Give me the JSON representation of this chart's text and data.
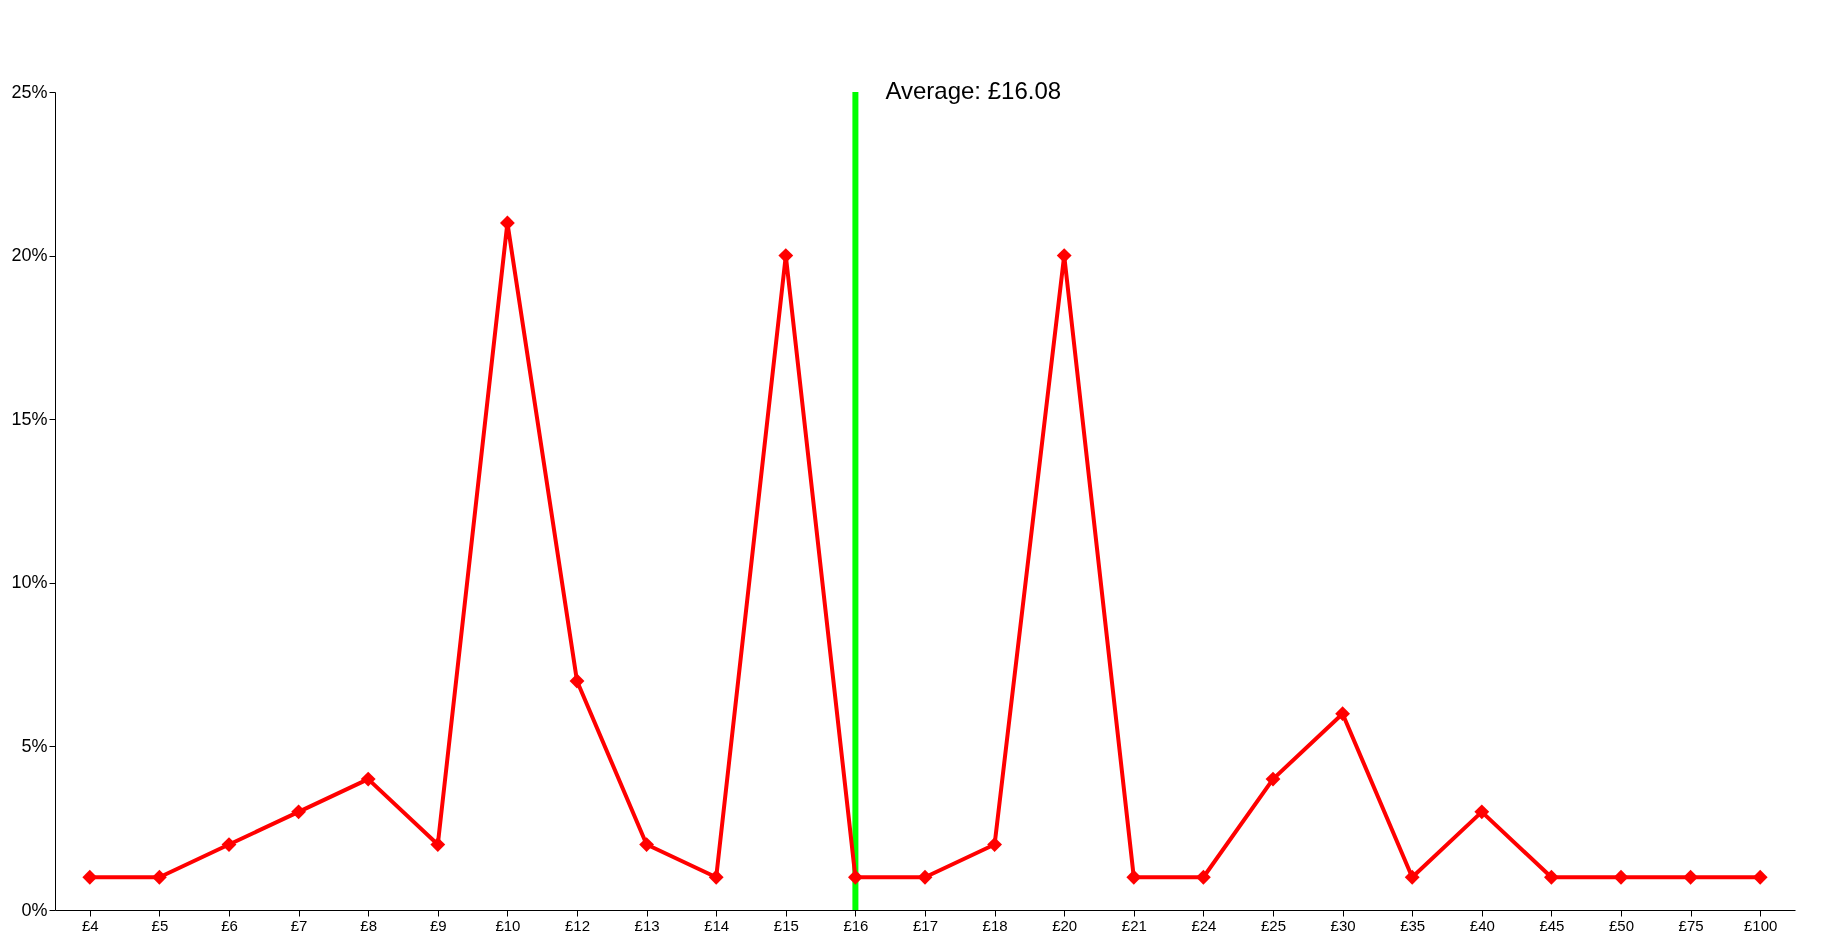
{
  "chart_data": {
    "type": "line",
    "categories": [
      "£4",
      "£5",
      "£6",
      "£7",
      "£8",
      "£9",
      "£10",
      "£12",
      "£13",
      "£14",
      "£15",
      "£16",
      "£17",
      "£18",
      "£20",
      "£21",
      "£24",
      "£25",
      "£30",
      "£35",
      "£40",
      "£45",
      "£50",
      "£75",
      "£100"
    ],
    "series": [
      {
        "color": "#ff0000",
        "values": [
          1,
          1,
          2,
          3,
          4,
          2,
          21,
          7,
          2,
          1,
          20,
          1,
          1,
          2,
          20,
          1,
          1,
          4,
          6,
          1,
          3,
          1,
          1,
          1,
          1
        ]
      }
    ],
    "ylim": [
      0,
      25
    ],
    "yticks": [
      {
        "value": 0,
        "label": "0%"
      },
      {
        "value": 5,
        "label": "5%"
      },
      {
        "value": 10,
        "label": "10%"
      },
      {
        "value": 15,
        "label": "15%"
      },
      {
        "value": 20,
        "label": "20%"
      },
      {
        "value": 25,
        "label": "25%"
      }
    ],
    "ref_lines": [
      {
        "axis": "x",
        "value": "£16",
        "label": "Average:  £16.08",
        "color": "#00ff00"
      }
    ],
    "marker": "diamond",
    "line_style": "solid"
  }
}
